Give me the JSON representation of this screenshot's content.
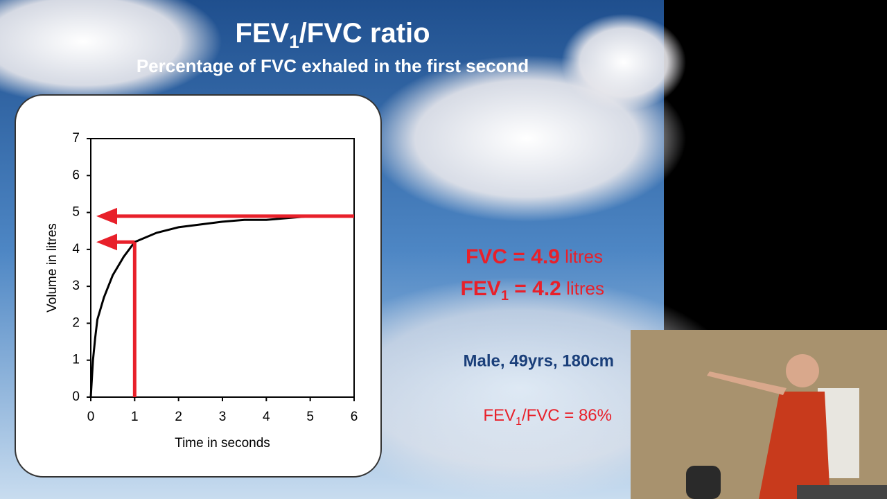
{
  "slide": {
    "title": {
      "main": "FEV",
      "sub": "1",
      "rest": "/FVC ratio"
    },
    "subtitle": "Percentage of FVC exhaled in the first second",
    "fvc": {
      "label": "FVC = ",
      "value": "4.9",
      "unit": " litres"
    },
    "fev1": {
      "main": "FEV",
      "sub": "1",
      "label": " = ",
      "value": "4.2",
      "unit": " litres"
    },
    "patient": "Male, 49yrs, 180cm",
    "ratio": {
      "main": "FEV",
      "sub": "1",
      "rest": "/FVC = 86%"
    }
  },
  "chart_data": {
    "type": "line",
    "x_label": "Time in seconds",
    "y_label": "Volume in litres",
    "x": [
      0,
      0.05,
      0.1,
      0.15,
      0.3,
      0.5,
      0.75,
      1,
      1.5,
      2,
      3,
      3.5,
      4,
      5
    ],
    "series": [
      {
        "color": "#000000",
        "values": [
          0,
          1,
          1.6,
          2.1,
          2.7,
          3.3,
          3.8,
          4.2,
          4.45,
          4.6,
          4.75,
          4.8,
          4.8,
          4.9
        ]
      }
    ],
    "reference_lines": [
      {
        "x": 6,
        "y": 4.9,
        "color": "#e8202a"
      },
      {
        "x": 1,
        "y": 4.2,
        "color": "#e8202a"
      }
    ],
    "xlim": [
      0,
      6
    ],
    "ylim": [
      0,
      7
    ],
    "xticks": [
      0,
      1,
      2,
      3,
      4,
      5,
      6
    ],
    "yticks": [
      0,
      1,
      2,
      3,
      4,
      5,
      6,
      7
    ]
  }
}
